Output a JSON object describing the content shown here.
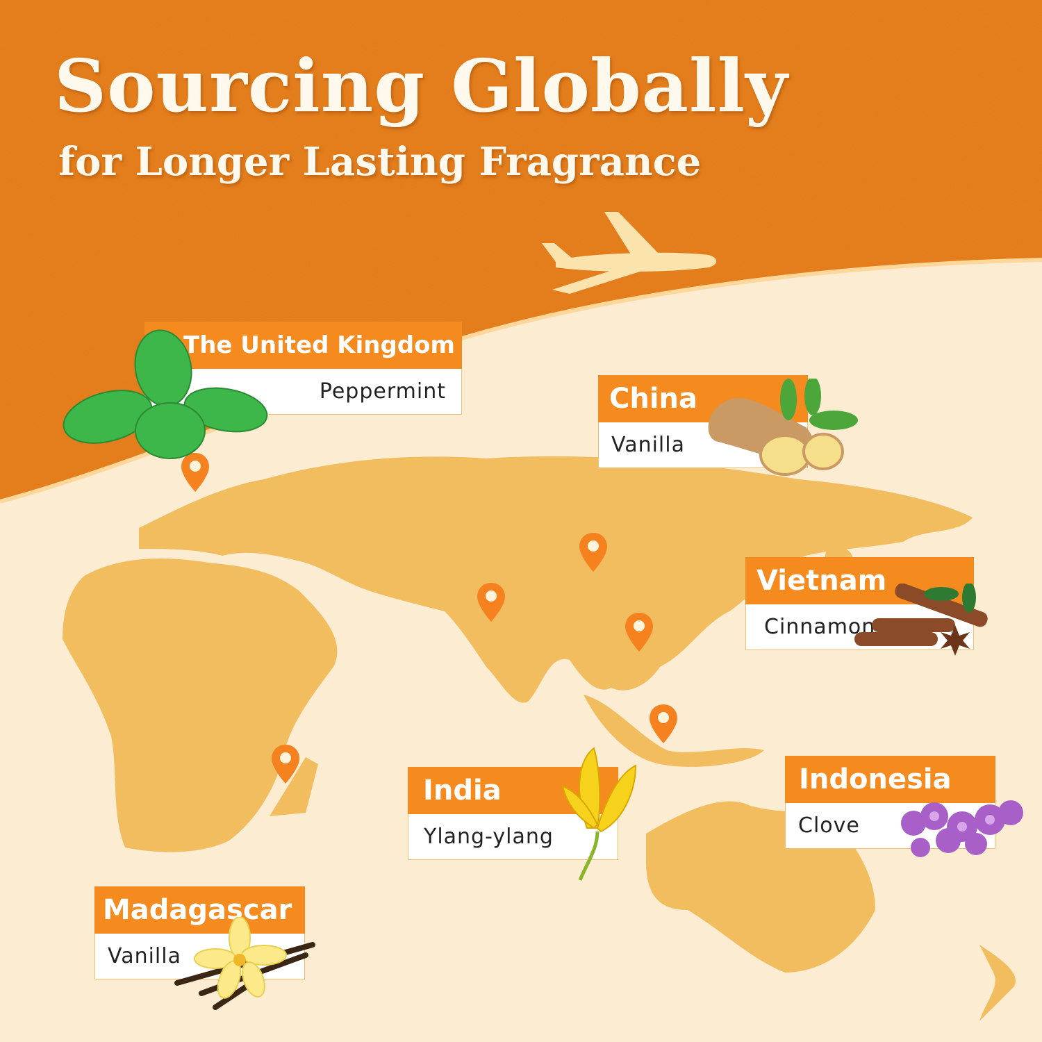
{
  "header": {
    "title": "Sourcing Globally",
    "subtitle": "for Longer Lasting Fragrance"
  },
  "colors": {
    "background_top": "#e8801f",
    "background_bottom": "#fcecd2",
    "land": "#f2bd5e",
    "label_header": "#f58a1f",
    "pin": "#f5821f"
  },
  "sources": [
    {
      "country": "The United Kingdom",
      "ingredient": "Peppermint",
      "icon": "peppermint-leaves-icon"
    },
    {
      "country": "China",
      "ingredient": "Vanilla",
      "icon": "ginger-root-icon"
    },
    {
      "country": "Vietnam",
      "ingredient": "Cinnamon",
      "icon": "cinnamon-sticks-icon"
    },
    {
      "country": "India",
      "ingredient": "Ylang-ylang",
      "icon": "ylang-ylang-flower-icon"
    },
    {
      "country": "Indonesia",
      "ingredient": "Clove",
      "icon": "lilac-flower-icon"
    },
    {
      "country": "Madagascar",
      "ingredient": "Vanilla",
      "icon": "vanilla-flower-icon"
    }
  ],
  "decorations": {
    "airplane": "airplane-icon",
    "pin": "map-pin-icon"
  }
}
